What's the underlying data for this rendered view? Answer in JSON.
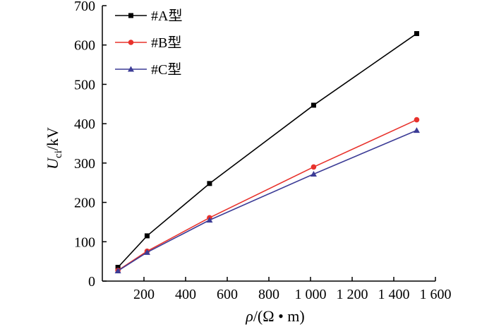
{
  "chart_data": {
    "type": "line",
    "xlabel": "ρ/(Ω • m)",
    "xlabel_parts": {
      "var": "ρ",
      "unit": "/(Ω • m)"
    },
    "ylabel": "Uci/kV",
    "ylabel_parts": {
      "var": "U",
      "sub": "ci",
      "unit": "/kV"
    },
    "xlim": [
      0,
      1600
    ],
    "ylim": [
      0,
      700
    ],
    "x_ticks": [
      200,
      400,
      600,
      800,
      1000,
      1200,
      1400,
      1600
    ],
    "x_tick_labels": [
      "200",
      "400",
      "600",
      "800",
      "1 000",
      "1 200",
      "1 400",
      "1 600"
    ],
    "y_ticks": [
      0,
      100,
      200,
      300,
      400,
      500,
      600,
      700
    ],
    "y_tick_labels": [
      "0",
      "100",
      "200",
      "300",
      "400",
      "500",
      "600",
      "700"
    ],
    "grid": false,
    "legend_position": "top-left",
    "series": [
      {
        "name": "#A型",
        "color": "#000000",
        "marker": "square",
        "x": [
          75,
          215,
          515,
          1015,
          1510
        ],
        "y": [
          35,
          115,
          248,
          447,
          629
        ]
      },
      {
        "name": "#B型",
        "color": "#e8322c",
        "marker": "circle",
        "x": [
          75,
          215,
          515,
          1015,
          1510
        ],
        "y": [
          27,
          76,
          161,
          290,
          410
        ]
      },
      {
        "name": "#C型",
        "color": "#3c3c96",
        "marker": "triangle",
        "x": [
          75,
          215,
          515,
          1015,
          1510
        ],
        "y": [
          26,
          73,
          155,
          272,
          383
        ]
      }
    ]
  }
}
